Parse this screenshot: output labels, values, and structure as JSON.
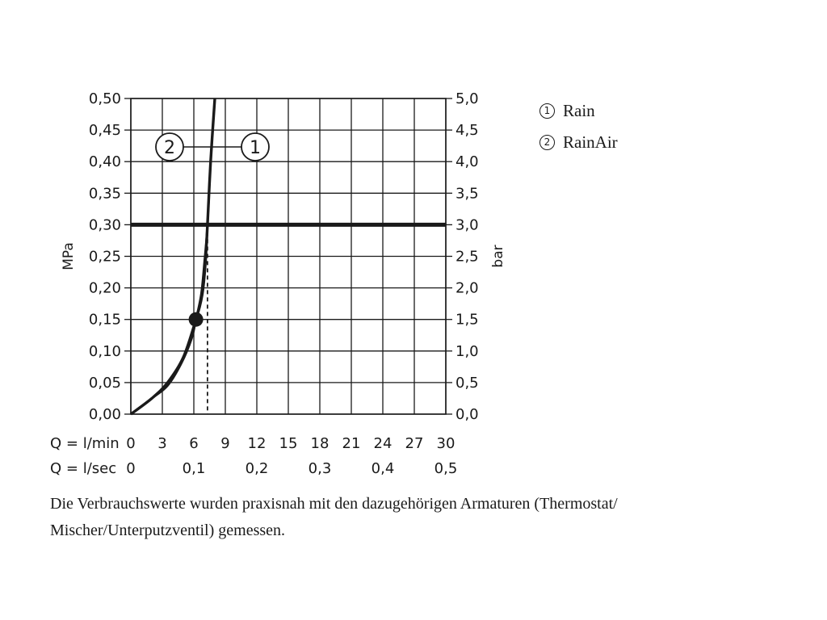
{
  "chart_data": {
    "type": "line",
    "y_left": {
      "label": "MPa",
      "ticks": [
        "0,00",
        "0,05",
        "0,10",
        "0,15",
        "0,20",
        "0,25",
        "0,30",
        "0,35",
        "0,40",
        "0,45",
        "0,50"
      ],
      "range": [
        0,
        0.5
      ]
    },
    "y_right": {
      "label": "bar",
      "ticks": [
        "0,0",
        "0,5",
        "1,0",
        "1,5",
        "2,0",
        "2,5",
        "3,0",
        "3,5",
        "4,0",
        "4,5",
        "5,0"
      ],
      "range": [
        0,
        5
      ]
    },
    "x_top": {
      "label": "Q = l/min",
      "ticks": [
        "0",
        "3",
        "6",
        "9",
        "12",
        "15",
        "18",
        "21",
        "24",
        "27",
        "30"
      ],
      "range": [
        0,
        30
      ]
    },
    "x_bottom": {
      "label": "Q = l/sec",
      "ticks": [
        {
          "v": 0,
          "t": "0"
        },
        {
          "v": 6,
          "t": "0,1"
        },
        {
          "v": 12,
          "t": "0,2"
        },
        {
          "v": 18,
          "t": "0,3"
        },
        {
          "v": 24,
          "t": "0,4"
        },
        {
          "v": 30,
          "t": "0,5"
        }
      ]
    },
    "grid": true,
    "reference_line": {
      "y": 0.3
    },
    "operating_point": {
      "x": 6.2,
      "y": 0.15
    },
    "dashed_x": 7.3,
    "series": [
      {
        "name": "Rain",
        "marker": "1",
        "x": [
          0,
          2,
          3.5,
          5,
          6.2,
          6.8,
          7.1,
          7.3,
          7.6,
          8.0
        ],
        "y": [
          0,
          0.025,
          0.05,
          0.09,
          0.15,
          0.19,
          0.24,
          0.3,
          0.4,
          0.5
        ]
      },
      {
        "name": "RainAir",
        "marker": "2",
        "x": [
          0,
          2,
          3.5,
          4.8,
          5.8,
          6.2,
          6.7,
          7.0,
          7.3,
          7.6,
          8.0
        ],
        "y": [
          0,
          0.025,
          0.045,
          0.08,
          0.12,
          0.15,
          0.19,
          0.24,
          0.3,
          0.4,
          0.5
        ]
      }
    ],
    "callouts": [
      "2",
      "1"
    ]
  },
  "legend": [
    {
      "num": "1",
      "label": "Rain"
    },
    {
      "num": "2",
      "label": "RainAir"
    }
  ],
  "note": {
    "line1": "Die Verbrauchswerte wurden praxisnah mit den dazugehörigen Armaturen (Thermostat/",
    "line2": "Mischer/Unterputzventil) gemessen."
  }
}
